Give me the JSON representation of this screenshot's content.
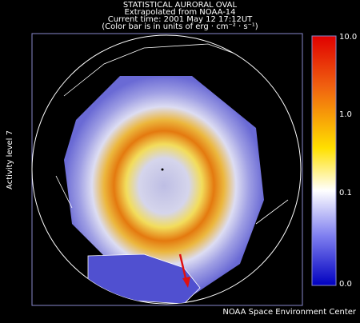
{
  "header": {
    "title": "STATISTICAL AURORAL OVAL",
    "source": "Extrapolated from NOAA-14",
    "time": "Current time: 2001 May 12 17:12UT",
    "units": "(Color bar is in units of erg · cm⁻² · s⁻¹)"
  },
  "side_label": "Activity level 7",
  "colorbar": {
    "labels": [
      "10.0",
      "1.0",
      "0.1",
      "0.0"
    ]
  },
  "footer": "NOAA Space Environment Center"
}
